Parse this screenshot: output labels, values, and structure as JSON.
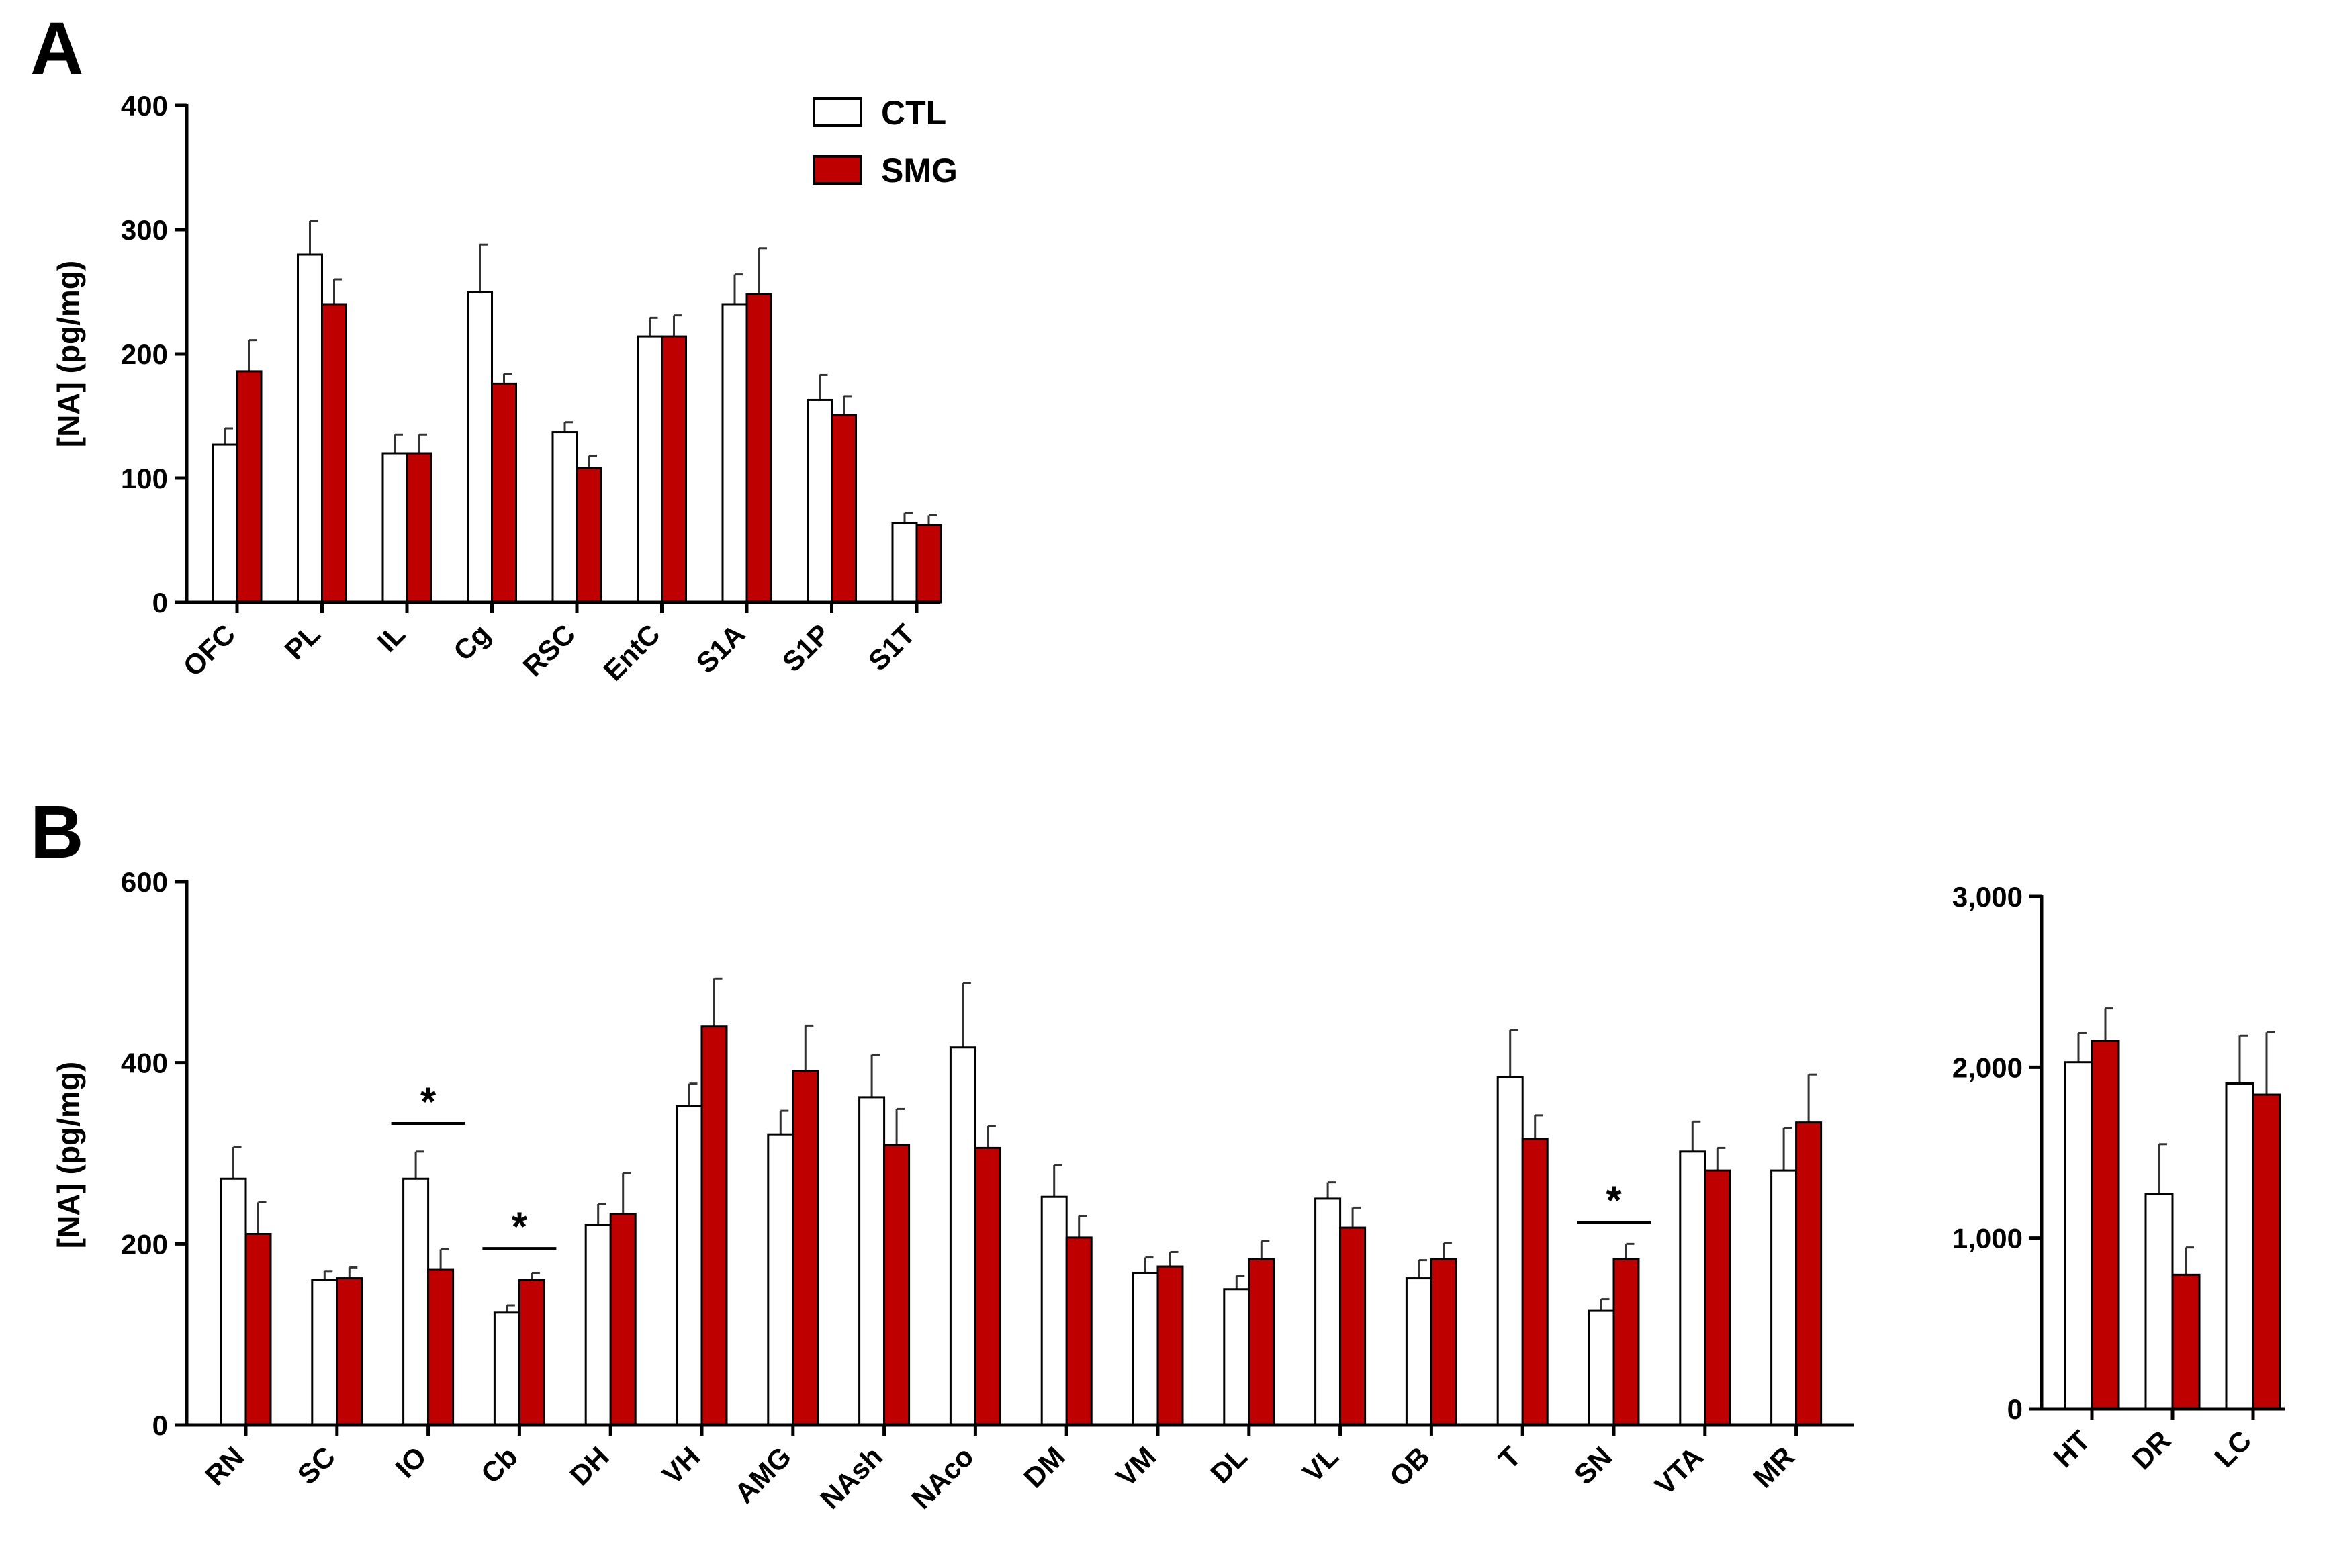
{
  "colors": {
    "ctl": "#ffffff",
    "smg": "#bf0000",
    "axis": "#000000",
    "error": "#333333"
  },
  "legend": {
    "ctl_label": "CTL",
    "smg_label": "SMG"
  },
  "significance_marker": "*",
  "chart_data": [
    {
      "id": "A",
      "panel_label": "A",
      "type": "bar",
      "title": "",
      "xlabel": "",
      "ylabel": "[NA] (pg/mg)",
      "ylim": [
        0,
        400
      ],
      "yticks": [
        0,
        100,
        200,
        300,
        400
      ],
      "ytick_labels": [
        "0",
        "100",
        "200",
        "300",
        "400"
      ],
      "categories": [
        "OFC",
        "PL",
        "IL",
        "Cg",
        "RSC",
        "EntC",
        "S1A",
        "S1P",
        "S1T"
      ],
      "series": [
        {
          "name": "CTL",
          "values": [
            127,
            280,
            120,
            250,
            137,
            214,
            240,
            163,
            64
          ],
          "errors": [
            13,
            27,
            15,
            38,
            8,
            15,
            24,
            20,
            8
          ]
        },
        {
          "name": "SMG",
          "values": [
            186,
            240,
            120,
            176,
            108,
            214,
            248,
            151,
            62
          ],
          "errors": [
            25,
            20,
            15,
            8,
            10,
            17,
            37,
            15,
            8
          ]
        }
      ],
      "significant": []
    },
    {
      "id": "B1",
      "panel_label": "B",
      "type": "bar",
      "title": "",
      "xlabel": "",
      "ylabel": "[NA] (pg/mg)",
      "ylim": [
        0,
        600
      ],
      "yticks": [
        0,
        200,
        400,
        600
      ],
      "ytick_labels": [
        "0",
        "200",
        "400",
        "600"
      ],
      "categories": [
        "RN",
        "SC",
        "IO",
        "Cb",
        "DH",
        "VH",
        "AMG",
        "NAsh",
        "NAco",
        "DM",
        "VM",
        "DL",
        "VL",
        "OB",
        "T",
        "SN",
        "VTA",
        "MR"
      ],
      "series": [
        {
          "name": "CTL",
          "values": [
            272,
            160,
            272,
            124,
            221,
            352,
            321,
            362,
            417,
            252,
            168,
            150,
            250,
            162,
            384,
            126,
            302,
            281
          ],
          "errors": [
            35,
            10,
            30,
            8,
            23,
            25,
            26,
            47,
            71,
            35,
            17,
            15,
            18,
            20,
            52,
            13,
            33,
            47
          ]
        },
        {
          "name": "SMG",
          "values": [
            211,
            162,
            172,
            160,
            233,
            440,
            391,
            309,
            306,
            207,
            175,
            183,
            218,
            183,
            316,
            183,
            281,
            334
          ],
          "errors": [
            35,
            12,
            22,
            8,
            45,
            53,
            50,
            40,
            24,
            24,
            16,
            20,
            22,
            18,
            26,
            17,
            25,
            53
          ]
        }
      ],
      "significant": [
        {
          "category": "IO",
          "label": "*",
          "level": 333
        },
        {
          "category": "Cb",
          "label": "*",
          "level": 195
        },
        {
          "category": "SN",
          "label": "*",
          "level": 224
        }
      ]
    },
    {
      "id": "B2",
      "panel_label": "",
      "type": "bar",
      "title": "",
      "xlabel": "",
      "ylabel": "",
      "ylim": [
        0,
        3000
      ],
      "yticks": [
        0,
        1000,
        2000,
        3000
      ],
      "ytick_labels": [
        "0",
        "1,000",
        "2,000",
        "3,000"
      ],
      "categories": [
        "HT",
        "DR",
        "LC"
      ],
      "series": [
        {
          "name": "CTL",
          "values": [
            2030,
            1260,
            1905
          ],
          "errors": [
            170,
            290,
            280
          ]
        },
        {
          "name": "SMG",
          "values": [
            2155,
            785,
            1840
          ],
          "errors": [
            190,
            160,
            365
          ]
        }
      ],
      "significant": []
    }
  ]
}
